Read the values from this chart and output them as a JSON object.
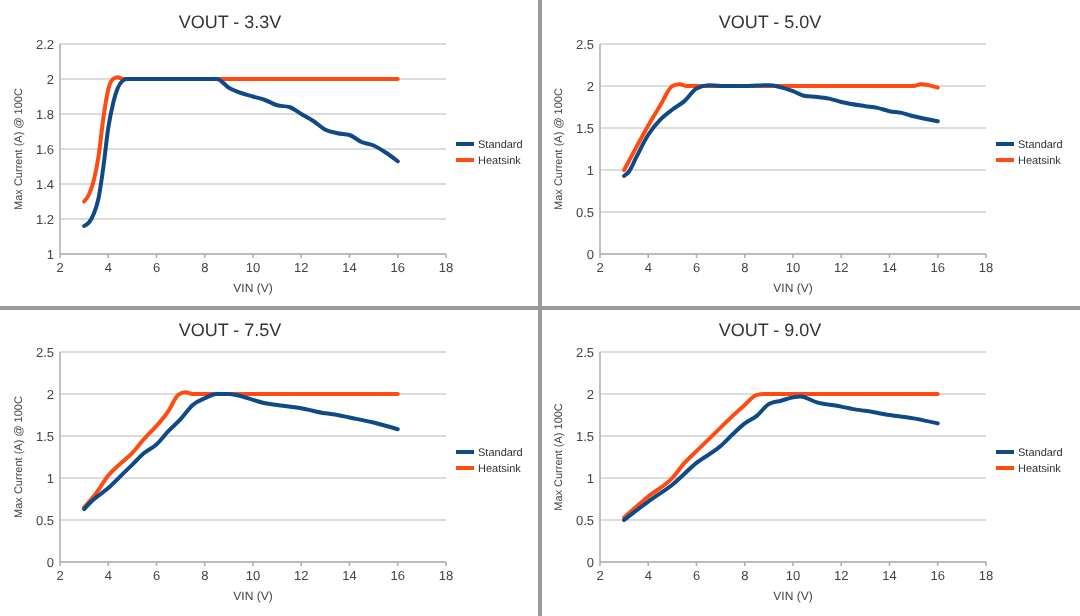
{
  "chart_data": [
    {
      "type": "line",
      "title": "VOUT - 3.3V",
      "xlabel": "VIN (V)",
      "ylabel": "Max Current (A) @ 100C",
      "xlim": [
        2,
        18
      ],
      "xticks": [
        2,
        4,
        6,
        8,
        10,
        12,
        14,
        16,
        18
      ],
      "ylim": [
        1,
        2.2
      ],
      "yticks": [
        1,
        1.2,
        1.4,
        1.6,
        1.8,
        2,
        2.2
      ],
      "grid": "y",
      "legend": "right",
      "series": [
        {
          "name": "Standard",
          "color": "#0f4a86",
          "x": [
            3,
            3.2,
            3.4,
            3.6,
            3.8,
            4,
            4.2,
            4.4,
            4.6,
            4.8,
            5,
            6,
            7,
            8,
            8.5,
            9,
            9.5,
            10,
            10.5,
            11,
            11.5,
            12,
            12.5,
            13,
            13.5,
            14,
            14.5,
            15,
            15.5,
            16
          ],
          "values": [
            1.16,
            1.18,
            1.23,
            1.32,
            1.5,
            1.72,
            1.86,
            1.95,
            1.99,
            2.0,
            2.0,
            2.0,
            2.0,
            2.0,
            2.0,
            1.95,
            1.92,
            1.9,
            1.88,
            1.85,
            1.84,
            1.8,
            1.76,
            1.71,
            1.69,
            1.68,
            1.64,
            1.62,
            1.58,
            1.53
          ]
        },
        {
          "name": "Heatsink",
          "color": "#ff4b12",
          "x": [
            3,
            3.2,
            3.4,
            3.6,
            3.8,
            4,
            4.2,
            4.4,
            4.6,
            16
          ],
          "values": [
            1.3,
            1.34,
            1.42,
            1.56,
            1.78,
            1.94,
            2.0,
            2.01,
            2.0,
            2.0
          ]
        }
      ]
    },
    {
      "type": "line",
      "title": "VOUT - 5.0V",
      "xlabel": "VIN (V)",
      "ylabel": "Max Current (A) @ 100C",
      "xlim": [
        2,
        18
      ],
      "xticks": [
        2,
        4,
        6,
        8,
        10,
        12,
        14,
        16,
        18
      ],
      "ylim": [
        0,
        2.5
      ],
      "yticks": [
        0,
        0.5,
        1,
        1.5,
        2,
        2.5
      ],
      "grid": "y",
      "legend": "right",
      "series": [
        {
          "name": "Standard",
          "color": "#0f4a86",
          "x": [
            3,
            3.2,
            3.5,
            4,
            4.5,
            5,
            5.5,
            6,
            6.5,
            7,
            8,
            9,
            10,
            10.5,
            11,
            11.5,
            12,
            13,
            13.5,
            14,
            14.5,
            15,
            16
          ],
          "values": [
            0.93,
            0.98,
            1.15,
            1.42,
            1.6,
            1.72,
            1.82,
            1.97,
            2.01,
            2.0,
            2.0,
            2.01,
            1.94,
            1.88,
            1.87,
            1.85,
            1.81,
            1.76,
            1.74,
            1.7,
            1.68,
            1.64,
            1.58
          ]
        },
        {
          "name": "Heatsink",
          "color": "#ff4b12",
          "x": [
            3,
            3.5,
            4,
            4.5,
            5,
            5.3,
            5.6,
            15,
            15.3,
            16
          ],
          "values": [
            1.0,
            1.27,
            1.53,
            1.77,
            2.0,
            2.02,
            2.0,
            2.0,
            2.02,
            1.98
          ]
        }
      ]
    },
    {
      "type": "line",
      "title": "VOUT - 7.5V",
      "xlabel": "VIN (V)",
      "ylabel": "Max Current (A) @ 100C",
      "xlim": [
        2,
        18
      ],
      "xticks": [
        2,
        4,
        6,
        8,
        10,
        12,
        14,
        16,
        18
      ],
      "ylim": [
        0,
        2.5
      ],
      "yticks": [
        0,
        0.5,
        1,
        1.5,
        2,
        2.5
      ],
      "grid": "y",
      "legend": "right",
      "series": [
        {
          "name": "Standard",
          "color": "#0f4a86",
          "x": [
            3,
            3.3,
            4,
            4.5,
            5,
            5.5,
            6,
            6.5,
            7,
            7.5,
            8,
            8.5,
            9,
            10,
            10.5,
            11,
            12,
            13,
            13.5,
            14,
            15,
            16
          ],
          "values": [
            0.63,
            0.72,
            0.88,
            1.02,
            1.16,
            1.3,
            1.4,
            1.56,
            1.7,
            1.87,
            1.95,
            2.0,
            2.0,
            1.93,
            1.89,
            1.87,
            1.83,
            1.77,
            1.75,
            1.72,
            1.66,
            1.58
          ]
        },
        {
          "name": "Heatsink",
          "color": "#ff4b12",
          "x": [
            3,
            3.5,
            4,
            4.5,
            5,
            5.5,
            6,
            6.5,
            6.9,
            7.2,
            7.5,
            16
          ],
          "values": [
            0.65,
            0.82,
            1.03,
            1.17,
            1.3,
            1.47,
            1.62,
            1.8,
            1.99,
            2.02,
            2.0,
            2.0
          ]
        }
      ]
    },
    {
      "type": "line",
      "title": "VOUT - 9.0V",
      "xlabel": "VIN (V)",
      "ylabel": "Max Current (A) 100C",
      "xlim": [
        2,
        18
      ],
      "xticks": [
        2,
        4,
        6,
        8,
        10,
        12,
        14,
        16,
        18
      ],
      "ylim": [
        0,
        2.5
      ],
      "yticks": [
        0,
        0.5,
        1,
        1.5,
        2,
        2.5
      ],
      "grid": "y",
      "legend": "right",
      "series": [
        {
          "name": "Standard",
          "color": "#0f4a86",
          "x": [
            3,
            4,
            5,
            6,
            7,
            7.5,
            8,
            8.5,
            9,
            9.5,
            10,
            10.3,
            11,
            12,
            12.5,
            13,
            14,
            15,
            16
          ],
          "values": [
            0.5,
            0.72,
            0.92,
            1.18,
            1.38,
            1.52,
            1.65,
            1.74,
            1.88,
            1.92,
            1.96,
            1.97,
            1.9,
            1.85,
            1.82,
            1.8,
            1.75,
            1.71,
            1.65
          ]
        },
        {
          "name": "Heatsink",
          "color": "#ff4b12",
          "x": [
            3,
            4,
            5,
            5.5,
            6,
            7,
            7.5,
            8,
            8.5,
            8.8,
            16
          ],
          "values": [
            0.53,
            0.78,
            1.0,
            1.18,
            1.32,
            1.6,
            1.74,
            1.87,
            1.99,
            2.0,
            2.0
          ]
        }
      ]
    }
  ]
}
